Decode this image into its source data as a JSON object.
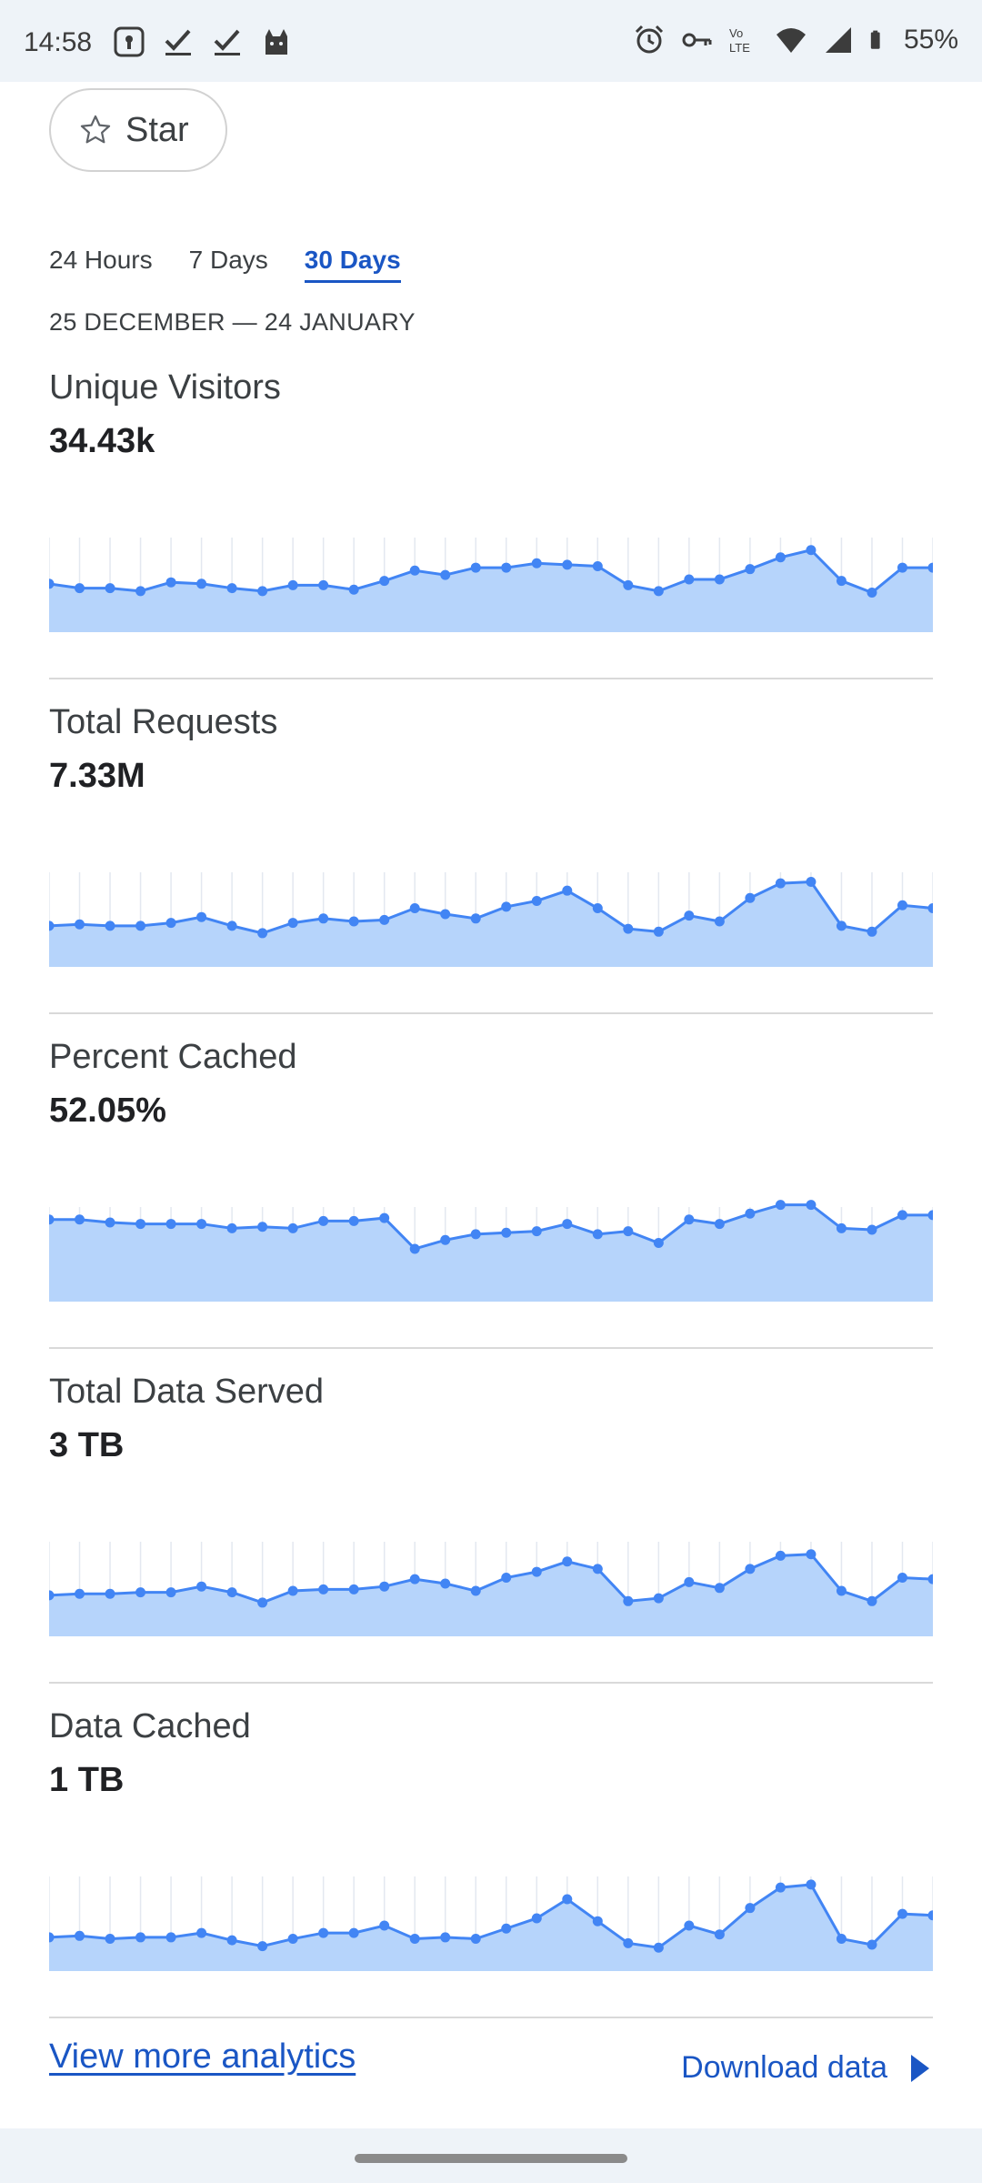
{
  "status_bar": {
    "time": "14:58",
    "battery": "55%",
    "left_icons": [
      "password-icon",
      "check-icon",
      "check-icon",
      "cat-icon"
    ],
    "right_icons": [
      "alarm-icon",
      "key-icon",
      "volte-icon",
      "wifi-icon",
      "signal-icon",
      "battery-icon"
    ]
  },
  "star": {
    "label": "Star",
    "icon": "star-outline-icon"
  },
  "tabs": [
    {
      "label": "24 Hours",
      "active": false
    },
    {
      "label": "7 Days",
      "active": false
    },
    {
      "label": "30 Days",
      "active": true
    }
  ],
  "date_range": "25 DECEMBER — 24 JANUARY",
  "colors": {
    "accent": "#1a56c4",
    "line": "#4285f4",
    "fill": "#b6d4fb",
    "gridline": "#e3e8f0"
  },
  "metrics": [
    {
      "title": "Unique Visitors",
      "value": "34.43k",
      "chart_data": {
        "type": "area",
        "values": [
          33,
          30,
          30,
          28,
          34,
          33,
          30,
          28,
          32,
          32,
          29,
          35,
          42,
          39,
          44,
          44,
          47,
          46,
          45,
          32,
          28,
          36,
          36,
          43,
          51,
          56,
          35,
          27,
          44,
          44
        ],
        "ylim": [
          0,
          100
        ]
      }
    },
    {
      "title": "Total Requests",
      "value": "7.33M",
      "chart_data": {
        "type": "area",
        "values": [
          28,
          29,
          28,
          28,
          30,
          34,
          28,
          23,
          30,
          33,
          31,
          32,
          40,
          36,
          33,
          41,
          45,
          52,
          40,
          26,
          24,
          35,
          31,
          47,
          57,
          58,
          28,
          24,
          42,
          40
        ],
        "ylim": [
          0,
          100
        ]
      }
    },
    {
      "title": "Percent Cached",
      "value": "52.05%",
      "chart_data": {
        "type": "area",
        "values": [
          56,
          56,
          54,
          53,
          53,
          53,
          50,
          51,
          50,
          55,
          55,
          57,
          36,
          42,
          46,
          47,
          48,
          53,
          46,
          48,
          40,
          56,
          53,
          60,
          66,
          66,
          50,
          49,
          59,
          59
        ],
        "ylim": [
          0,
          100
        ]
      }
    },
    {
      "title": "Total Data Served",
      "value": "3 TB",
      "chart_data": {
        "type": "area",
        "values": [
          28,
          29,
          29,
          30,
          30,
          34,
          30,
          23,
          31,
          32,
          32,
          34,
          39,
          36,
          31,
          40,
          44,
          51,
          46,
          24,
          26,
          37,
          33,
          46,
          55,
          56,
          31,
          24,
          40,
          39
        ],
        "ylim": [
          0,
          100
        ]
      }
    },
    {
      "title": "Data Cached",
      "value": "1 TB",
      "chart_data": {
        "type": "area",
        "values": [
          23,
          24,
          22,
          23,
          23,
          26,
          21,
          17,
          22,
          26,
          26,
          31,
          22,
          23,
          22,
          29,
          36,
          49,
          34,
          19,
          16,
          31,
          25,
          43,
          57,
          59,
          22,
          18,
          39,
          38
        ],
        "ylim": [
          0,
          100
        ]
      }
    }
  ],
  "footer": {
    "view_more": "View more analytics",
    "download": "Download data",
    "download_icon": "play-icon"
  }
}
